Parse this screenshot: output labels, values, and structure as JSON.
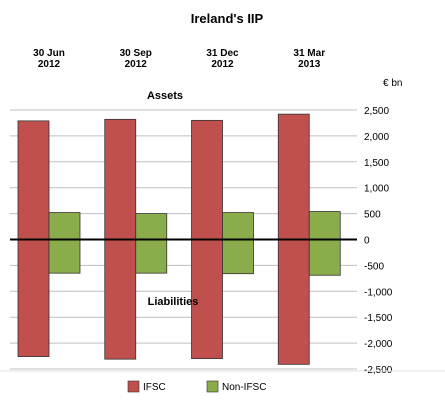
{
  "chart_data": {
    "type": "bar",
    "title": "Ireland's IIP",
    "unit_label": "€ bn",
    "categories": [
      [
        "30 Jun",
        "2012"
      ],
      [
        "30 Sep",
        "2012"
      ],
      [
        "31 Dec",
        "2012"
      ],
      [
        "31 Mar",
        "2013"
      ]
    ],
    "ylim": [
      -2500,
      2500
    ],
    "yticks": [
      2500,
      2000,
      1500,
      1000,
      500,
      0,
      -500,
      -1000,
      -1500,
      -2000,
      -2500
    ],
    "ytick_labels": [
      "2,500",
      "2,000",
      "1,500",
      "1,000",
      "500",
      "0",
      "-500",
      "-1,000",
      "-1,500",
      "-2,000",
      "-2,500"
    ],
    "grid": true,
    "legend_position": "bottom",
    "annotations": {
      "assets": "Assets",
      "liabilities": "Liabilities"
    },
    "series": [
      {
        "name": "IFSC",
        "color": "#c0504d",
        "assets": [
          2290,
          2320,
          2300,
          2420
        ],
        "liabilities": [
          -2260,
          -2310,
          -2300,
          -2410
        ]
      },
      {
        "name": "Non-IFSC",
        "color": "#8aac4a",
        "assets": [
          520,
          500,
          520,
          540
        ],
        "liabilities": [
          -650,
          -650,
          -660,
          -690
        ]
      }
    ]
  }
}
